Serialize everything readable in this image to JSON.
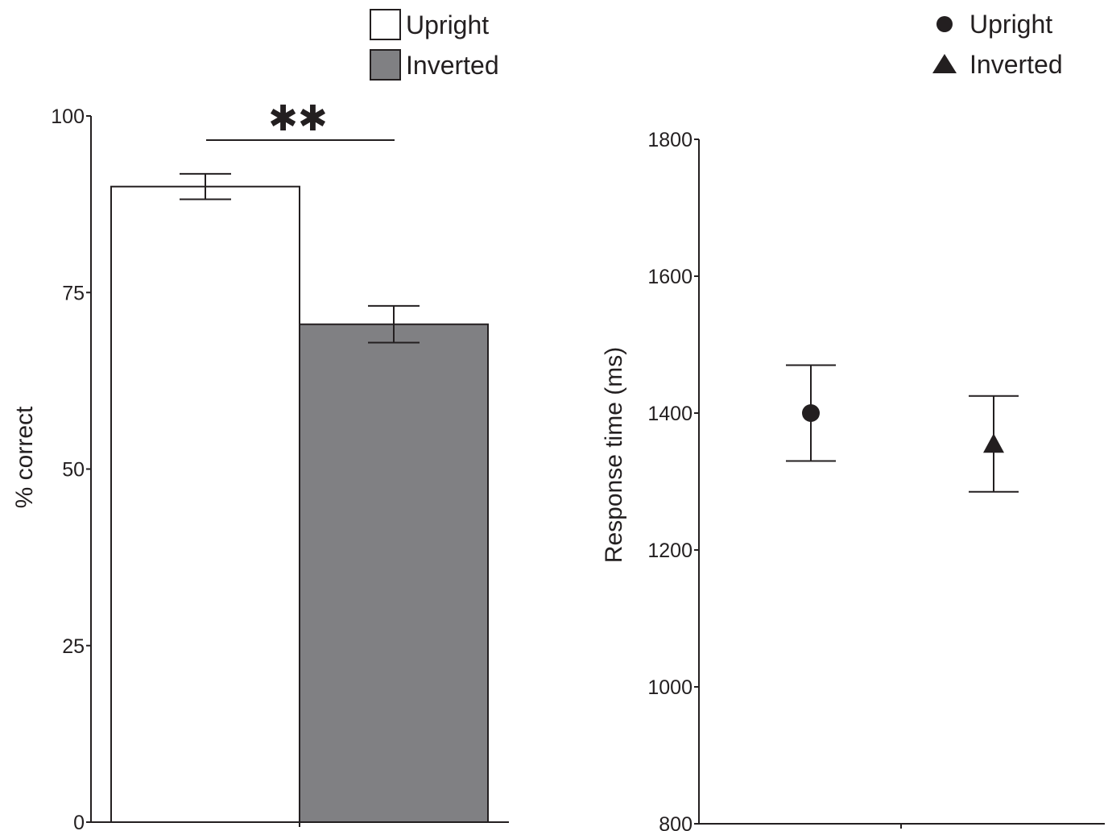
{
  "chart_data": [
    {
      "type": "bar",
      "categories": [
        "Upright",
        "Inverted"
      ],
      "values": [
        90,
        70.5
      ],
      "errors": [
        1.8,
        2.6
      ],
      "ylabel": "% correct",
      "xlabel": "",
      "ylim": [
        0,
        100
      ],
      "yticks": [
        0,
        25,
        50,
        75,
        100
      ],
      "ytick_labels": [
        "0",
        "25",
        "50",
        "75",
        "100"
      ],
      "colors": [
        "#ffffff",
        "#808083"
      ],
      "legend": {
        "placement": "top",
        "entries": [
          "Upright",
          "Inverted"
        ]
      },
      "significance": "✱✱",
      "grid": false
    },
    {
      "type": "scatter",
      "categories": [
        "Upright",
        "Inverted"
      ],
      "series": [
        {
          "name": "Upright",
          "marker": "circle",
          "values": [
            1400
          ],
          "errors": [
            70
          ]
        },
        {
          "name": "Inverted",
          "marker": "triangle",
          "values": [
            1355
          ],
          "errors": [
            70
          ]
        }
      ],
      "ylabel": "Response time (ms)",
      "xlabel": "",
      "ylim": [
        800,
        1800
      ],
      "yticks": [
        800,
        1000,
        1200,
        1400,
        1600,
        1800
      ],
      "ytick_labels": [
        "800",
        "1000",
        "1200",
        "1400",
        "1600",
        "1800"
      ],
      "legend": {
        "placement": "top-right",
        "entries": [
          "Upright",
          "Inverted"
        ]
      },
      "grid": false
    }
  ]
}
